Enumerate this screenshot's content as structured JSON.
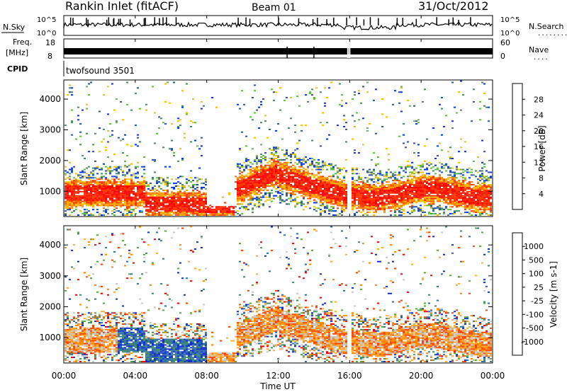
{
  "header": {
    "title": "Rankin Inlet (fitACF)",
    "beam": "Beam 01",
    "date": "31/Oct/2012"
  },
  "noise_panel": {
    "left_label": "N.Sky",
    "right_label": "N.Search",
    "right_marker": "........",
    "ticks": [
      "10^5",
      "10^0"
    ]
  },
  "freq_panel": {
    "left_label_1": "Freq.",
    "left_label_2": "[MHz]",
    "left_ticks": [
      "18",
      "8"
    ],
    "right_label": "Nave",
    "right_marker": "....",
    "right_ticks": [
      "60",
      "0"
    ]
  },
  "cpid_panel": {
    "label": "CPID",
    "program": "twofsound 3501"
  },
  "colors": {
    "power": [
      "#0033ff",
      "#2d52a8",
      "#4b8a5e",
      "#5bbf3c",
      "#f2c200",
      "#ff9900",
      "#ff6600",
      "#ff3300",
      "#ff0000"
    ],
    "velocity": [
      "#ff0000",
      "#ff4400",
      "#ff8800",
      "#ffaa33",
      "#c8c8c8",
      "#55aa33",
      "#3f8a6a",
      "#2f6db0",
      "#1030d0"
    ]
  },
  "chart_data": [
    {
      "type": "heatmap",
      "quantity": "Power",
      "ylabel": "Slant Range [km]",
      "ylim": [
        200,
        4600
      ],
      "yticks": [
        1000,
        2000,
        3000,
        4000
      ],
      "xlim_hours": [
        0,
        24
      ],
      "colorbar_label": "Power [dB]",
      "colorbar_ticks": [
        "28",
        "24",
        "20",
        "16",
        "12",
        "8",
        "4"
      ],
      "colorbar_range": [
        0,
        32
      ]
    },
    {
      "type": "heatmap",
      "quantity": "Velocity",
      "ylabel": "Slant Range [km]",
      "ylim": [
        200,
        4600
      ],
      "yticks": [
        1000,
        2000,
        3000,
        4000
      ],
      "xlim_hours": [
        0,
        24
      ],
      "colorbar_label": "Velocity [m s-1]",
      "colorbar_ticks": [
        "1000",
        "500",
        "100",
        "25",
        "-25",
        "-100",
        "-500",
        "-1000"
      ]
    }
  ],
  "x_axis": {
    "ticks": [
      "00:00",
      "04:00",
      "08:00",
      "12:00",
      "16:00",
      "20:00",
      "00:00"
    ],
    "label": "Time UT"
  }
}
